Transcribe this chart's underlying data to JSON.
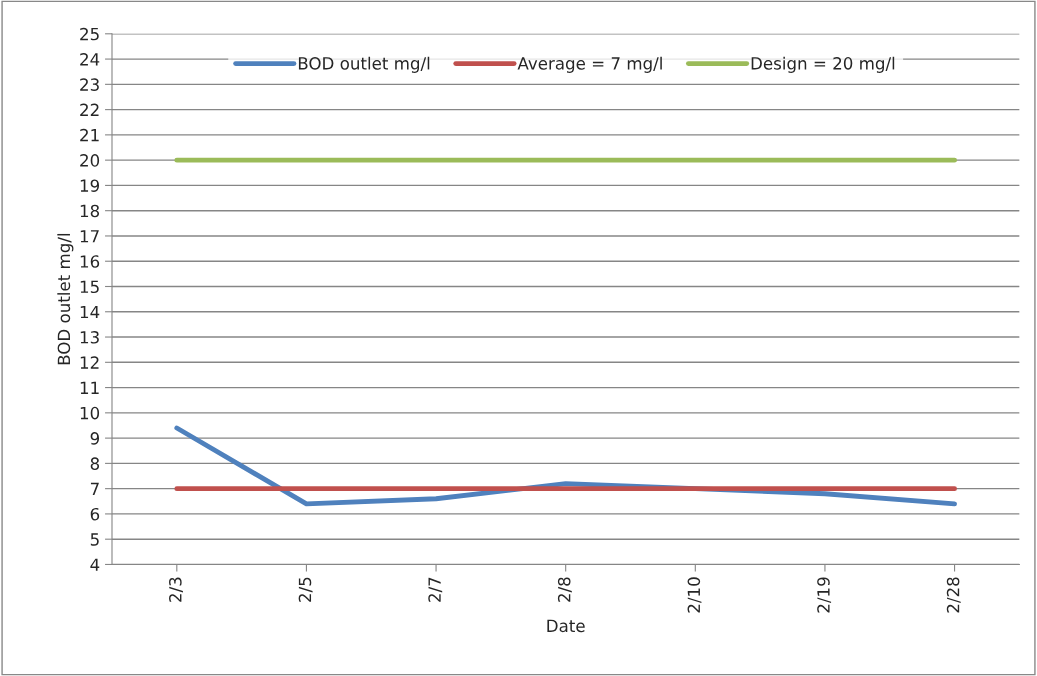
{
  "chart_data": {
    "type": "line",
    "xlabel": "Date",
    "ylabel": "BOD outlet mg/l",
    "categories": [
      "2/3",
      "2/5",
      "2/7",
      "2/8",
      "2/10",
      "2/19",
      "2/28"
    ],
    "series": [
      {
        "name": "BOD outlet mg/l",
        "color": "#4f81bd",
        "values": [
          9.4,
          6.4,
          6.6,
          7.2,
          7.0,
          6.8,
          6.4
        ]
      },
      {
        "name": "Average = 7 mg/l",
        "color": "#c0504d",
        "values": [
          7,
          7,
          7,
          7,
          7,
          7,
          7
        ]
      },
      {
        "name": "Design = 20 mg/l",
        "color": "#9bbb59",
        "values": [
          20,
          20,
          20,
          20,
          20,
          20,
          20
        ]
      }
    ],
    "ylim": [
      4,
      25
    ],
    "yticks": [
      4,
      5,
      6,
      7,
      8,
      9,
      10,
      11,
      12,
      13,
      14,
      15,
      16,
      17,
      18,
      19,
      20,
      21,
      22,
      23,
      24,
      25
    ],
    "grid": "y",
    "legend": "top",
    "marker": "none",
    "line_style": "solid"
  }
}
